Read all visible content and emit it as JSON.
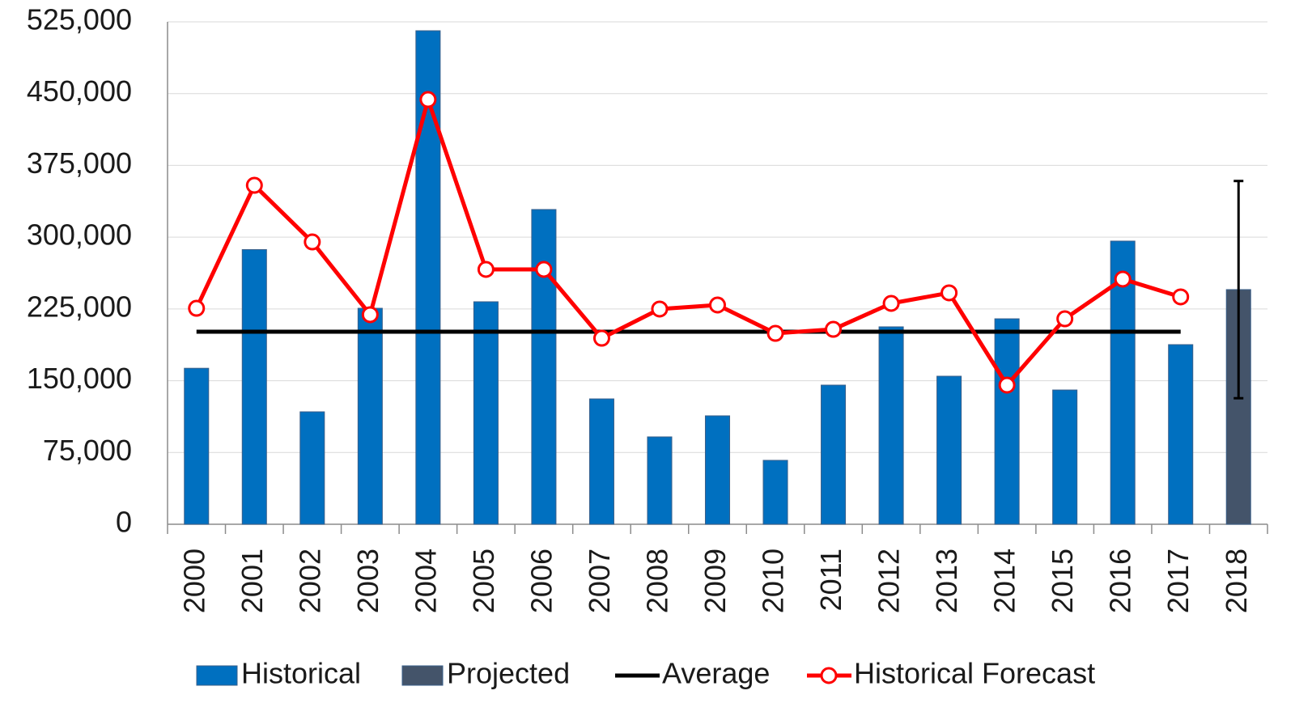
{
  "chart_data": {
    "type": "bar",
    "categories": [
      "2000",
      "2001",
      "2002",
      "2003",
      "2004",
      "2005",
      "2006",
      "2007",
      "2008",
      "2009",
      "2010",
      "2011",
      "2012",
      "2013",
      "2014",
      "2015",
      "2016",
      "2017",
      "2018"
    ],
    "series": [
      {
        "name": "Historical",
        "type": "bar",
        "color": "#0070c0",
        "values": [
          163000,
          287000,
          117500,
          225700,
          515700,
          232500,
          328900,
          131000,
          91300,
          113300,
          66800,
          145400,
          206300,
          154700,
          214700,
          140300,
          295900,
          187700,
          null
        ]
      },
      {
        "name": "Projected",
        "type": "bar",
        "color": "#44546a",
        "values": [
          null,
          null,
          null,
          null,
          null,
          null,
          null,
          null,
          null,
          null,
          null,
          null,
          null,
          null,
          null,
          null,
          null,
          null,
          245200
        ],
        "error": [
          null,
          null,
          null,
          null,
          null,
          null,
          null,
          null,
          null,
          null,
          null,
          null,
          null,
          null,
          null,
          null,
          null,
          null,
          113500
        ]
      },
      {
        "name": "Average",
        "type": "line",
        "color": "#000000",
        "values": [
          201200,
          201200,
          201200,
          201200,
          201200,
          201200,
          201200,
          201200,
          201200,
          201200,
          201200,
          201200,
          201200,
          201200,
          201200,
          201200,
          201200,
          201200,
          null
        ]
      },
      {
        "name": "Historical Forecast",
        "type": "line",
        "color": "#ff0000",
        "marker": "circle",
        "values": [
          225700,
          354200,
          295000,
          219000,
          443800,
          266300,
          266300,
          194400,
          224900,
          229100,
          199500,
          203700,
          230800,
          241800,
          145400,
          214700,
          256200,
          237600,
          null
        ]
      }
    ],
    "ylim": [
      0,
      525000
    ],
    "yticks": [
      0,
      {
        "value": 75000,
        "label": "75,000"
      },
      {
        "value": 150000,
        "label": "150,000"
      },
      {
        "value": 225000,
        "label": "225,000"
      },
      {
        "value": 300000,
        "label": "300,000"
      },
      {
        "value": 375000,
        "label": "375,000"
      },
      {
        "value": 450000,
        "label": "450,000"
      },
      {
        "value": 525000,
        "label": "525,000"
      }
    ],
    "grid": true,
    "legend": "bottom"
  }
}
